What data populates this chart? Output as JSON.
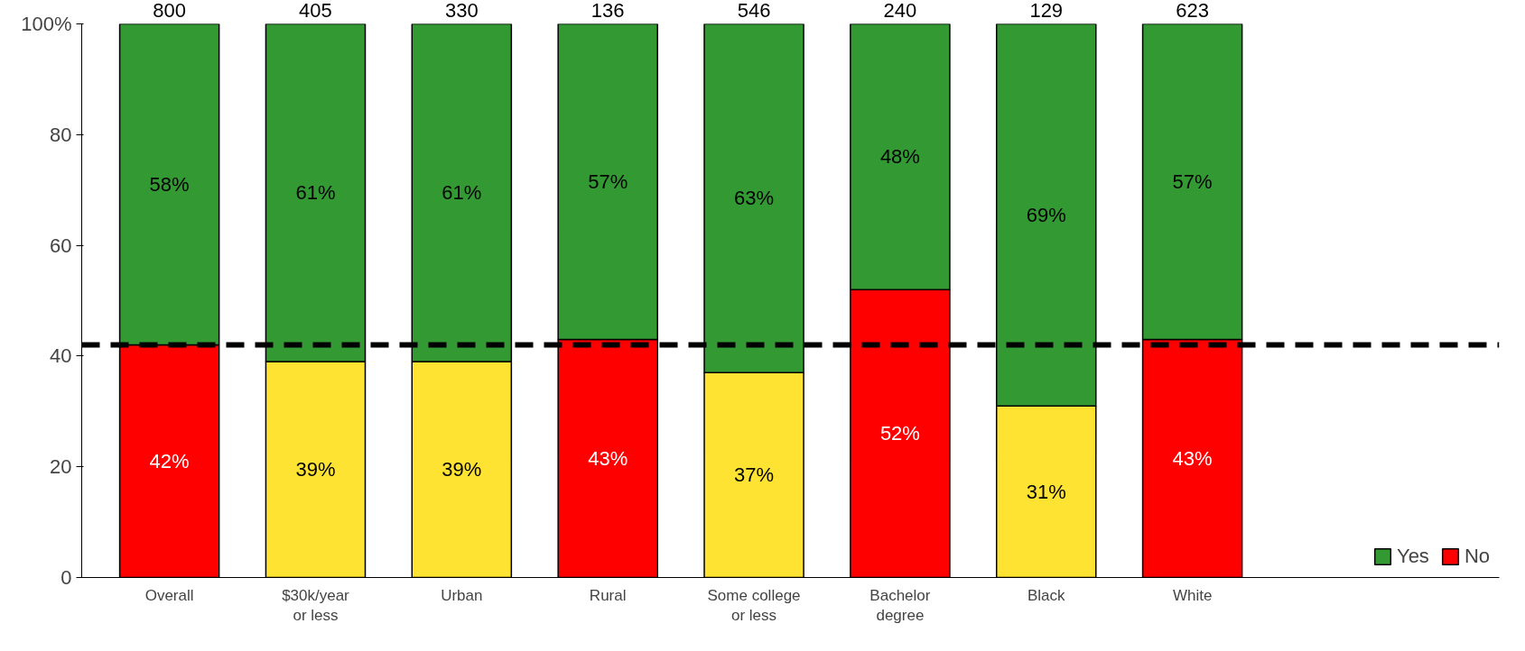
{
  "chart_data": {
    "type": "bar",
    "stacked": true,
    "categories": [
      "Overall",
      "$30k/year\nor less",
      "Urban",
      "Rural",
      "Some college\nor less",
      "Bachelor\ndegree",
      "Black",
      "White"
    ],
    "series": [
      {
        "name": "No",
        "color": "#ff0000",
        "colors": [
          "#ff0000",
          "#ffe333",
          "#ffe333",
          "#ff0000",
          "#ffe333",
          "#ff0000",
          "#ffe333",
          "#ff0000"
        ],
        "values": [
          42,
          39,
          39,
          43,
          37,
          52,
          31,
          43
        ],
        "value_labels": [
          "42%",
          "39%",
          "39%",
          "43%",
          "37%",
          "52%",
          "31%",
          "43%"
        ]
      },
      {
        "name": "Yes",
        "color": "#339933",
        "values": [
          58,
          61,
          61,
          57,
          63,
          48,
          69,
          57
        ],
        "value_labels": [
          "58%",
          "61%",
          "61%",
          "57%",
          "63%",
          "48%",
          "69%",
          "57%"
        ]
      }
    ],
    "ylim": [
      0,
      100
    ],
    "yticks": [
      0,
      20,
      40,
      60,
      80,
      {
        "value": 100,
        "label": "100%"
      }
    ],
    "data_labels": true,
    "grid": false,
    "legend": "bottom right",
    "ref_lines": [
      {
        "axis": "y",
        "value": 42,
        "line_style": "dashed",
        "color": "#000000"
      }
    ],
    "annotations": [
      {
        "text": "800",
        "x": "Overall",
        "y": 100
      },
      {
        "text": "405",
        "x": "$30k/year\nor less",
        "y": 100
      },
      {
        "text": "330",
        "x": "Urban",
        "y": 100
      },
      {
        "text": "136",
        "x": "Rural",
        "y": 100
      },
      {
        "text": "546",
        "x": "Some college\nor less",
        "y": 100
      },
      {
        "text": "240",
        "x": "Bachelor\ndegree",
        "y": 100
      },
      {
        "text": "129",
        "x": "Black",
        "y": 100
      },
      {
        "text": "623",
        "x": "White",
        "y": 100
      }
    ]
  }
}
